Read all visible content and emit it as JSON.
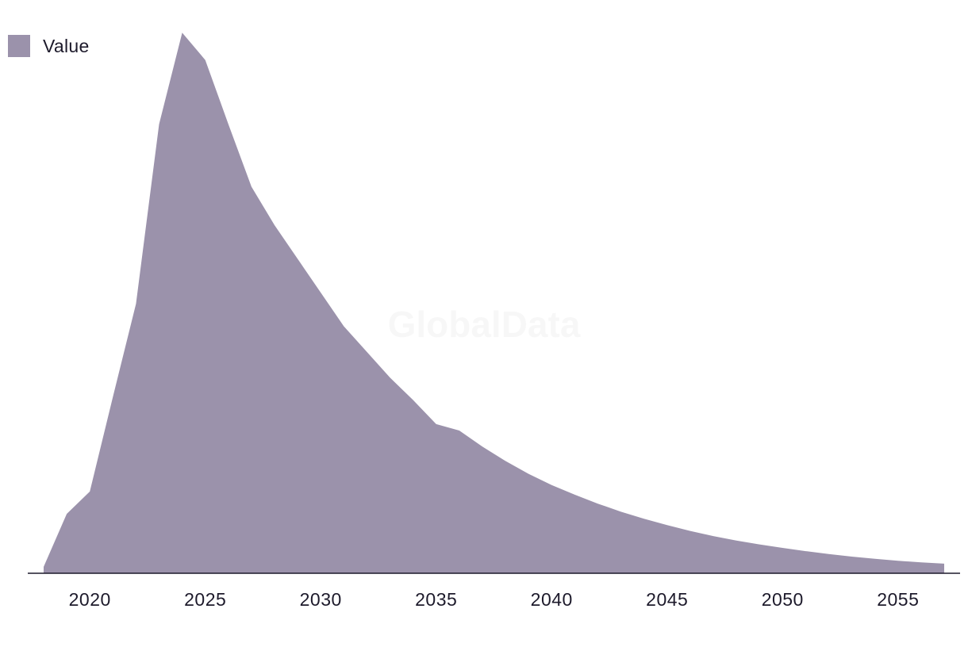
{
  "legend": {
    "label": "Value"
  },
  "watermark": "GlobalData",
  "colors": {
    "area": "#9b92ab",
    "axis": "#1d1a2b",
    "text": "#1d1a2b"
  },
  "chart_data": {
    "type": "area",
    "title": "",
    "xlabel": "",
    "ylabel": "",
    "grid": false,
    "legend_position": "top-left",
    "series": [
      {
        "name": "Value",
        "x": [
          2018,
          2019,
          2020,
          2021,
          2022,
          2023,
          2024,
          2025,
          2026,
          2027,
          2028,
          2029,
          2030,
          2031,
          2032,
          2033,
          2034,
          2035,
          2036,
          2037,
          2038,
          2039,
          2040,
          2041,
          2042,
          2043,
          2044,
          2045,
          2046,
          2047,
          2048,
          2049,
          2050,
          2051,
          2052,
          2053,
          2054,
          2055,
          2056,
          2057
        ],
        "values": [
          2,
          18.5,
          25.5,
          55,
          84,
          140,
          168.5,
          160,
          140,
          120.5,
          108.5,
          98,
          87.5,
          77,
          69,
          61,
          54,
          46.5,
          44.5,
          39.5,
          35,
          31,
          27.5,
          24.5,
          21.7,
          19.2,
          17,
          15,
          13.2,
          11.6,
          10.2,
          9,
          7.9,
          6.9,
          6,
          5.2,
          4.5,
          3.9,
          3.4,
          3
        ]
      }
    ],
    "xticks": [
      "2020",
      "2025",
      "2030",
      "2035",
      "2040",
      "2045",
      "2050",
      "2055"
    ],
    "xlim": [
      2016.8,
      2057.8
    ],
    "ylim": [
      0,
      175
    ]
  }
}
